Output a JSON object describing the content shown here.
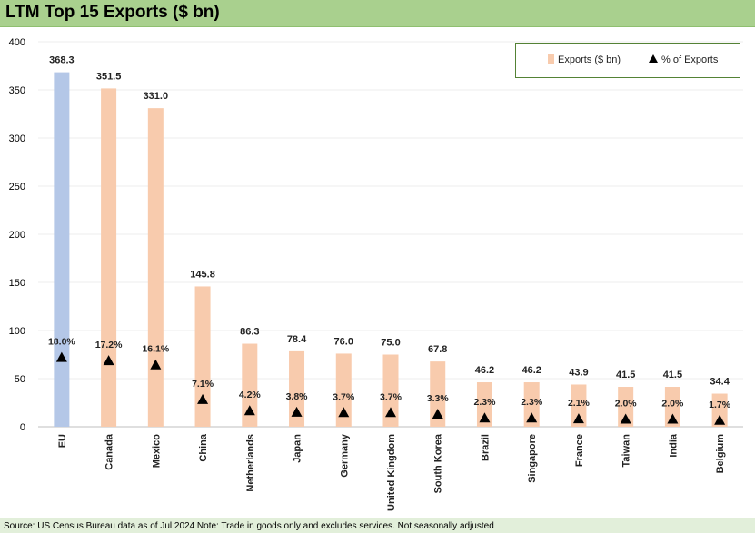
{
  "header": {
    "title": "LTM Top 15 Exports ($ bn)"
  },
  "footer": {
    "source": "Source: US Census Bureau data as of Jul 2024 Note: Trade in goods only and excludes services. Not seasonally adjusted"
  },
  "legend": {
    "exports": "Exports ($ bn)",
    "pct": "% of Exports"
  },
  "colors": {
    "eu_bar": "#b4c7e7",
    "bar": "#f8cbad",
    "marker": "#000000",
    "title_bg": "#a9d08e",
    "frame_bg": "#e2efda"
  },
  "chart_data": {
    "type": "bar",
    "title": "LTM Top 15 Exports ($ bn)",
    "categories": [
      "EU",
      "Canada",
      "Mexico",
      "China",
      "Netherlands",
      "Japan",
      "Germany",
      "United Kingdom",
      "South Korea",
      "Brazil",
      "Singapore",
      "France",
      "Taiwan",
      "India",
      "Belgium"
    ],
    "series": [
      {
        "name": "Exports ($ bn)",
        "type": "bar",
        "values": [
          368.3,
          351.5,
          331.0,
          145.8,
          86.3,
          78.4,
          76.0,
          75.0,
          67.8,
          46.2,
          46.2,
          43.9,
          41.5,
          41.5,
          34.4
        ],
        "labels": [
          "368.3",
          "351.5",
          "331.0",
          "145.8",
          "86.3",
          "78.4",
          "76.0",
          "75.0",
          "67.8",
          "46.2",
          "46.2",
          "43.9",
          "41.5",
          "41.5",
          "34.4"
        ]
      },
      {
        "name": "% of Exports",
        "type": "marker",
        "values": [
          18.0,
          17.2,
          16.1,
          7.1,
          4.2,
          3.8,
          3.7,
          3.7,
          3.3,
          2.3,
          2.3,
          2.1,
          2.0,
          2.0,
          1.7
        ],
        "labels": [
          "18.0%",
          "17.2%",
          "16.1%",
          "7.1%",
          "4.2%",
          "3.8%",
          "3.7%",
          "3.7%",
          "3.3%",
          "2.3%",
          "2.3%",
          "2.1%",
          "2.0%",
          "2.0%",
          "1.7%"
        ]
      }
    ],
    "ylim": [
      0,
      400
    ],
    "yticks": [
      "0",
      "50",
      "100",
      "150",
      "200",
      "250",
      "300",
      "350",
      "400"
    ],
    "grid": true,
    "legend_position": "top-right"
  }
}
